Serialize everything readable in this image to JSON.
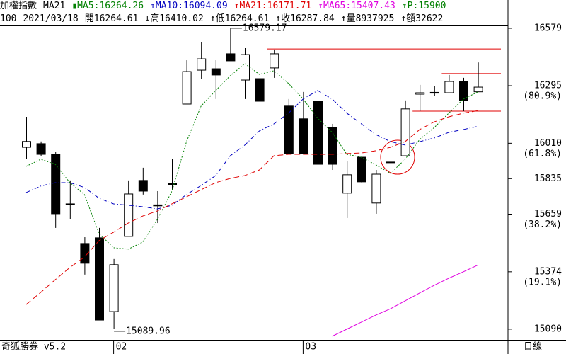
{
  "header": {
    "line1": [
      {
        "text": "加權指數",
        "color": "#000000"
      },
      {
        "text": "MA21",
        "color": "#000000"
      },
      {
        "text": "▮MA5:16264.26",
        "color": "#008000"
      },
      {
        "text": "↑MA10:16094.09",
        "color": "#0000c0"
      },
      {
        "text": "↑MA21:16171.71",
        "color": "#e00000"
      },
      {
        "text": "↑MA65:15407.43",
        "color": "#e000e0"
      },
      {
        "text": "↑P:15900",
        "color": "#008000"
      }
    ],
    "line2": [
      {
        "text": "100",
        "color": "#000000"
      },
      {
        "text": "2021/03/18",
        "color": "#000000"
      },
      {
        "text": "開16264.61",
        "color": "#000000"
      },
      {
        "text": "↓高16410.02",
        "color": "#000000"
      },
      {
        "text": "↑低16264.61",
        "color": "#000000"
      },
      {
        "text": "↑收16287.84",
        "color": "#000000"
      },
      {
        "text": "↑量8937925",
        "color": "#000000"
      },
      {
        "text": "↑額32622",
        "color": "#000000"
      }
    ]
  },
  "chart_data": {
    "type": "candlestick",
    "categories": [
      null,
      null,
      null,
      null,
      null,
      null,
      "02",
      null,
      null,
      null,
      null,
      null,
      null,
      null,
      null,
      null,
      null,
      null,
      null,
      "03",
      null,
      null,
      null,
      null,
      null,
      null,
      null,
      null,
      null,
      null,
      null,
      null
    ],
    "open": [
      15990,
      16008,
      15955,
      15710,
      15514,
      15542,
      15177,
      15549,
      15826,
      15705,
      15810,
      16204,
      16372,
      16379,
      16453,
      16323,
      16330,
      16383,
      16194,
      16131,
      16218,
      16088,
      15763,
      15941,
      15714,
      15917,
      15948,
      16253,
      16262,
      16260,
      16316,
      16264.61
    ],
    "close": [
      16019,
      15955,
      15661,
      15705,
      15416,
      15135,
      15409,
      15759,
      15773,
      15700,
      15806,
      16365,
      16428,
      16348,
      16418,
      16449,
      16218,
      16453,
      15959,
      15959,
      15906,
      15906,
      15854,
      15819,
      15857,
      15915,
      16180,
      16260,
      16258,
      16316,
      16222,
      16287.84
    ],
    "high": [
      16141,
      16019,
      15966,
      15826,
      15545,
      15591,
      15437,
      15826,
      15889,
      15773,
      15931,
      16421,
      16509,
      16421,
      16579.17,
      16481,
      16330,
      16474,
      16229,
      16264,
      16218,
      16106,
      15920,
      15948,
      15878,
      16001,
      16222,
      16299,
      16292,
      16348,
      16334,
      16410.02
    ],
    "low": [
      15931,
      15948,
      15591,
      15633,
      15360,
      15135,
      15089.96,
      15549,
      15756,
      15615,
      15780,
      16204,
      16327,
      16229,
      16418,
      16229,
      16218,
      16334,
      15959,
      15955,
      15878,
      15878,
      15640,
      15815,
      15661,
      15861,
      15948,
      16169,
      16243,
      16260,
      16169,
      16264.61
    ],
    "up_color": "#ffffff",
    "down_color": "#000000",
    "lines": [
      {
        "color": "#008000",
        "dash": "2,2",
        "values": [
          15896,
          15931,
          15906,
          15815,
          15756,
          15563,
          15493,
          15486,
          15521,
          15633,
          15773,
          16018,
          16194,
          16271,
          16344,
          16404,
          16351,
          16369,
          16306,
          16229,
          16134,
          16064,
          15955,
          15941,
          15903,
          15861,
          15931,
          16029,
          16088,
          16159,
          16229,
          16264.26
        ]
      },
      {
        "color": "#0000c0",
        "dash": "6,3,1,3",
        "values": [
          15766,
          15798,
          15815,
          15815,
          15791,
          15738,
          15710,
          15703,
          15696,
          15685,
          15703,
          15756,
          15801,
          15850,
          15948,
          16001,
          16071,
          16106,
          16159,
          16229,
          16271,
          16229,
          16159,
          16106,
          16053,
          16018,
          16001,
          16018,
          16036,
          16064,
          16078,
          16094.09
        ]
      },
      {
        "color": "#e00000",
        "dash": "8,4",
        "values": [
          15212,
          15272,
          15335,
          15395,
          15447,
          15528,
          15570,
          15615,
          15650,
          15675,
          15710,
          15745,
          15780,
          15815,
          15836,
          15850,
          15878,
          15948,
          15955,
          15955,
          15955,
          15955,
          15959,
          15962,
          15973,
          15990,
          16018,
          16078,
          16116,
          16141,
          16159,
          16171.71
        ]
      },
      {
        "color": "#e000e0",
        "dash": "none",
        "values": [
          null,
          null,
          null,
          null,
          null,
          null,
          null,
          null,
          null,
          null,
          null,
          null,
          null,
          null,
          null,
          null,
          null,
          null,
          null,
          null,
          null,
          15055,
          15090,
          15125,
          15160,
          15191,
          15230,
          15269,
          15307,
          15342,
          15374,
          15407.43
        ]
      }
    ],
    "resistance_lines": [
      {
        "value": 16477,
        "start": 17
      },
      {
        "value": 16355,
        "start": 29
      },
      {
        "value": 16169,
        "start": 27
      }
    ],
    "resistance_color": "#e00000",
    "high_label": {
      "index": 14,
      "label": "16579.17"
    },
    "low_label": {
      "index": 6,
      "label": "15089.96"
    },
    "ylim": [
      15037,
      16649
    ],
    "yticks": [
      16579,
      16295,
      16010,
      15835,
      15659,
      15374,
      15090
    ],
    "fib_labels": [
      {
        "value": 16295,
        "label": "(80.9%)"
      },
      {
        "value": 16010,
        "label": "(61.8%)"
      },
      {
        "value": 15659,
        "label": "(38.2%)"
      },
      {
        "value": 15374,
        "label": "(19.1%)"
      }
    ],
    "footer_left": "奇狐勝券 v5.2",
    "footer_right": "日線"
  }
}
